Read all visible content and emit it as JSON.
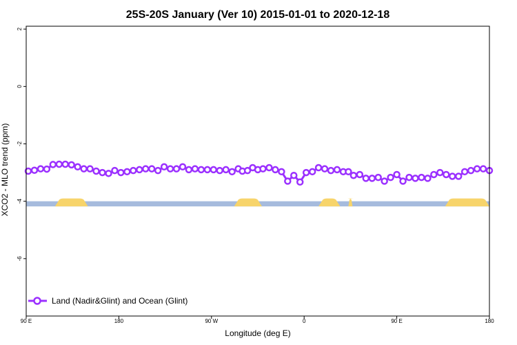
{
  "chart_data": {
    "type": "line",
    "title": "25S-20S January (Ver 10)   2015-01-01 to 2020-12-18",
    "xlabel": "Longitude (deg E)",
    "ylabel": "XCO2 - MLO trend (ppm)",
    "x_ticks": [
      {
        "lon": 90,
        "label": "90 E"
      },
      {
        "lon": 180,
        "label": "180"
      },
      {
        "lon": 270,
        "label": "90 W"
      },
      {
        "lon": 360,
        "label": "0"
      },
      {
        "lon": 450,
        "label": "90 E"
      },
      {
        "lon": 540,
        "label": "180"
      }
    ],
    "y_ticks": [
      {
        "value": 2,
        "label": "2"
      },
      {
        "value": 0,
        "label": "0"
      },
      {
        "value": -2,
        "label": "-2"
      },
      {
        "value": -4,
        "label": "-4"
      },
      {
        "value": -6,
        "label": "-6"
      }
    ],
    "xlim": [
      90,
      540
    ],
    "ylim": [
      -8,
      2.1
    ],
    "grid": false,
    "legend_position": "bottom-left",
    "colors": {
      "series": "#9b30ff",
      "ocean": "#a6bbdd",
      "land": "#f7d46b"
    },
    "surface_band": {
      "y_range": [
        -4.18,
        -4.0
      ],
      "land_segments_lon": [
        [
          118,
          150
        ],
        [
          292,
          319
        ],
        [
          374,
          395
        ],
        [
          403,
          407
        ],
        [
          497,
          553
        ]
      ]
    },
    "series": [
      {
        "name": "Land (Nadir&Glint) and Ocean (Glint)",
        "x": [
          92,
          98,
          104,
          110,
          116,
          122,
          128,
          134,
          140,
          146,
          152,
          158,
          164,
          170,
          176,
          182,
          188,
          194,
          200,
          206,
          212,
          218,
          224,
          230,
          236,
          242,
          248,
          254,
          260,
          266,
          272,
          278,
          284,
          290,
          296,
          300,
          305,
          310,
          315,
          320,
          326,
          332,
          338,
          344,
          350,
          356,
          362,
          368,
          374,
          380,
          386,
          392,
          398,
          403,
          408,
          414,
          420,
          426,
          432,
          438,
          444,
          450,
          456,
          462,
          468,
          474,
          480,
          486,
          492,
          498,
          504,
          510,
          516,
          522,
          528,
          534,
          540
        ],
        "values": [
          -2.95,
          -2.92,
          -2.87,
          -2.88,
          -2.72,
          -2.71,
          -2.71,
          -2.73,
          -2.8,
          -2.87,
          -2.87,
          -2.95,
          -3.0,
          -3.03,
          -2.93,
          -3.0,
          -2.97,
          -2.93,
          -2.9,
          -2.87,
          -2.87,
          -2.93,
          -2.8,
          -2.87,
          -2.87,
          -2.8,
          -2.9,
          -2.87,
          -2.9,
          -2.9,
          -2.9,
          -2.93,
          -2.9,
          -2.97,
          -2.87,
          -2.95,
          -2.93,
          -2.83,
          -2.9,
          -2.87,
          -2.83,
          -2.9,
          -2.97,
          -3.3,
          -3.1,
          -3.33,
          -3.0,
          -2.97,
          -2.83,
          -2.87,
          -2.93,
          -2.9,
          -2.97,
          -2.97,
          -3.1,
          -3.07,
          -3.2,
          -3.2,
          -3.17,
          -3.3,
          -3.17,
          -3.07,
          -3.3,
          -3.17,
          -3.2,
          -3.17,
          -3.2,
          -3.07,
          -3.0,
          -3.07,
          -3.13,
          -3.13,
          -2.97,
          -2.93,
          -2.87,
          -2.87,
          -2.93
        ]
      }
    ]
  }
}
